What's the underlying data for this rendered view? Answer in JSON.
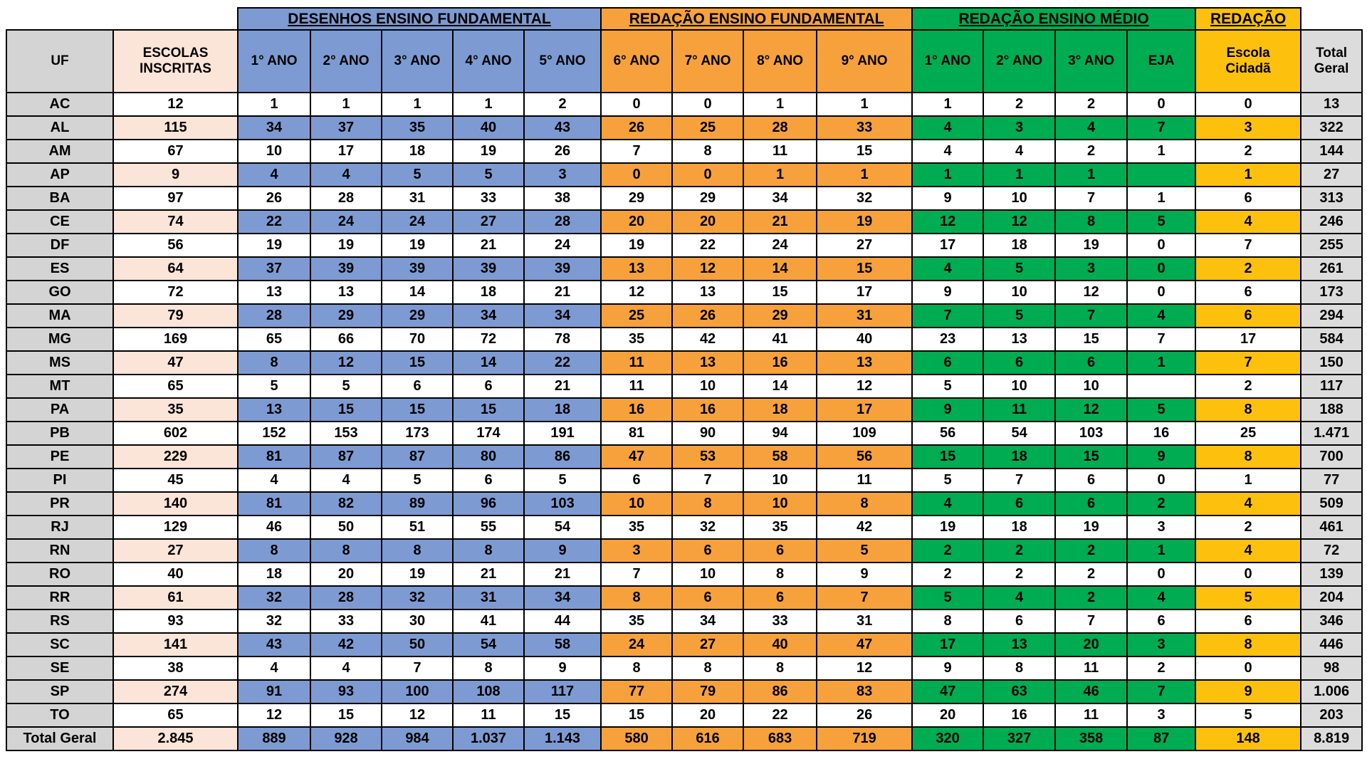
{
  "colors": {
    "blue": "#7D9BD2",
    "orange": "#F6A13B",
    "green": "#00AC51",
    "yellow": "#FDC00D",
    "gray": "#D4D4D4",
    "totalgray": "#DCDCDC",
    "peach": "#FBE5D8",
    "border": "#000000"
  },
  "table": {
    "group_headers": [
      {
        "label": "DESENHOS ENSINO FUNDAMENTAL",
        "span": 5
      },
      {
        "label": "REDAÇÃO ENSINO FUNDAMENTAL",
        "span": 4
      },
      {
        "label": "REDAÇÃO ENSINO MÉDIO",
        "span": 4
      },
      {
        "label": "REDAÇÃO",
        "span": 1
      }
    ],
    "columns": [
      "UF",
      "ESCOLAS\nINSCRITAS",
      "1° ANO",
      "2° ANO",
      "3° ANO",
      "4° ANO",
      "5° ANO",
      "6° ANO",
      "7° ANO",
      "8° ANO",
      "9° ANO",
      "1° ANO",
      "2° ANO",
      "3° ANO",
      "EJA",
      "Escola\nCidadã",
      "Total\nGeral"
    ],
    "rows": [
      {
        "uf": "AC",
        "cells": [
          "12",
          "1",
          "1",
          "1",
          "1",
          "2",
          "0",
          "0",
          "1",
          "1",
          "1",
          "2",
          "2",
          "0",
          "0",
          "13"
        ]
      },
      {
        "uf": "AL",
        "cells": [
          "115",
          "34",
          "37",
          "35",
          "40",
          "43",
          "26",
          "25",
          "28",
          "33",
          "4",
          "3",
          "4",
          "7",
          "3",
          "322"
        ]
      },
      {
        "uf": "AM",
        "cells": [
          "67",
          "10",
          "17",
          "18",
          "19",
          "26",
          "7",
          "8",
          "11",
          "15",
          "4",
          "4",
          "2",
          "1",
          "2",
          "144"
        ]
      },
      {
        "uf": "AP",
        "cells": [
          "9",
          "4",
          "4",
          "5",
          "5",
          "3",
          "0",
          "0",
          "1",
          "1",
          "1",
          "1",
          "1",
          "",
          "1",
          "27"
        ]
      },
      {
        "uf": "BA",
        "cells": [
          "97",
          "26",
          "28",
          "31",
          "33",
          "38",
          "29",
          "29",
          "34",
          "32",
          "9",
          "10",
          "7",
          "1",
          "6",
          "313"
        ]
      },
      {
        "uf": "CE",
        "cells": [
          "74",
          "22",
          "24",
          "24",
          "27",
          "28",
          "20",
          "20",
          "21",
          "19",
          "12",
          "12",
          "8",
          "5",
          "4",
          "246"
        ]
      },
      {
        "uf": "DF",
        "cells": [
          "56",
          "19",
          "19",
          "19",
          "21",
          "24",
          "19",
          "22",
          "24",
          "27",
          "17",
          "18",
          "19",
          "0",
          "7",
          "255"
        ]
      },
      {
        "uf": "ES",
        "cells": [
          "64",
          "37",
          "39",
          "39",
          "39",
          "39",
          "13",
          "12",
          "14",
          "15",
          "4",
          "5",
          "3",
          "0",
          "2",
          "261"
        ]
      },
      {
        "uf": "GO",
        "cells": [
          "72",
          "13",
          "13",
          "14",
          "18",
          "21",
          "12",
          "13",
          "15",
          "17",
          "9",
          "10",
          "12",
          "0",
          "6",
          "173"
        ]
      },
      {
        "uf": "MA",
        "cells": [
          "79",
          "28",
          "29",
          "29",
          "34",
          "34",
          "25",
          "26",
          "29",
          "31",
          "7",
          "5",
          "7",
          "4",
          "6",
          "294"
        ]
      },
      {
        "uf": "MG",
        "cells": [
          "169",
          "65",
          "66",
          "70",
          "72",
          "78",
          "35",
          "42",
          "41",
          "40",
          "23",
          "13",
          "15",
          "7",
          "17",
          "584"
        ]
      },
      {
        "uf": "MS",
        "cells": [
          "47",
          "8",
          "12",
          "15",
          "14",
          "22",
          "11",
          "13",
          "16",
          "13",
          "6",
          "6",
          "6",
          "1",
          "7",
          "150"
        ]
      },
      {
        "uf": "MT",
        "cells": [
          "65",
          "5",
          "5",
          "6",
          "6",
          "21",
          "11",
          "10",
          "14",
          "12",
          "5",
          "10",
          "10",
          "",
          "2",
          "117"
        ]
      },
      {
        "uf": "PA",
        "cells": [
          "35",
          "13",
          "15",
          "15",
          "15",
          "18",
          "16",
          "16",
          "18",
          "17",
          "9",
          "11",
          "12",
          "5",
          "8",
          "188"
        ]
      },
      {
        "uf": "PB",
        "cells": [
          "602",
          "152",
          "153",
          "173",
          "174",
          "191",
          "81",
          "90",
          "94",
          "109",
          "56",
          "54",
          "103",
          "16",
          "25",
          "1.471"
        ]
      },
      {
        "uf": "PE",
        "cells": [
          "229",
          "81",
          "87",
          "87",
          "80",
          "86",
          "47",
          "53",
          "58",
          "56",
          "15",
          "18",
          "15",
          "9",
          "8",
          "700"
        ]
      },
      {
        "uf": "PI",
        "cells": [
          "45",
          "4",
          "4",
          "5",
          "6",
          "5",
          "6",
          "7",
          "10",
          "11",
          "5",
          "7",
          "6",
          "0",
          "1",
          "77"
        ]
      },
      {
        "uf": "PR",
        "cells": [
          "140",
          "81",
          "82",
          "89",
          "96",
          "103",
          "10",
          "8",
          "10",
          "8",
          "4",
          "6",
          "6",
          "2",
          "4",
          "509"
        ]
      },
      {
        "uf": "RJ",
        "cells": [
          "129",
          "46",
          "50",
          "51",
          "55",
          "54",
          "35",
          "32",
          "35",
          "42",
          "19",
          "18",
          "19",
          "3",
          "2",
          "461"
        ]
      },
      {
        "uf": "RN",
        "cells": [
          "27",
          "8",
          "8",
          "8",
          "8",
          "9",
          "3",
          "6",
          "6",
          "5",
          "2",
          "2",
          "2",
          "1",
          "4",
          "72"
        ]
      },
      {
        "uf": "RO",
        "cells": [
          "40",
          "18",
          "20",
          "19",
          "21",
          "21",
          "7",
          "10",
          "8",
          "9",
          "2",
          "2",
          "2",
          "0",
          "0",
          "139"
        ]
      },
      {
        "uf": "RR",
        "cells": [
          "61",
          "32",
          "28",
          "32",
          "31",
          "34",
          "8",
          "6",
          "6",
          "7",
          "5",
          "4",
          "2",
          "4",
          "5",
          "204"
        ]
      },
      {
        "uf": "RS",
        "cells": [
          "93",
          "32",
          "33",
          "30",
          "41",
          "44",
          "35",
          "34",
          "33",
          "31",
          "8",
          "6",
          "7",
          "6",
          "6",
          "346"
        ]
      },
      {
        "uf": "SC",
        "cells": [
          "141",
          "43",
          "42",
          "50",
          "54",
          "58",
          "24",
          "27",
          "40",
          "47",
          "17",
          "13",
          "20",
          "3",
          "8",
          "446"
        ]
      },
      {
        "uf": "SE",
        "cells": [
          "38",
          "4",
          "4",
          "7",
          "8",
          "9",
          "8",
          "8",
          "8",
          "12",
          "9",
          "8",
          "11",
          "2",
          "0",
          "98"
        ]
      },
      {
        "uf": "SP",
        "cells": [
          "274",
          "91",
          "93",
          "100",
          "108",
          "117",
          "77",
          "79",
          "86",
          "83",
          "47",
          "63",
          "46",
          "7",
          "9",
          "1.006"
        ]
      },
      {
        "uf": "TO",
        "cells": [
          "65",
          "12",
          "15",
          "12",
          "11",
          "15",
          "15",
          "20",
          "22",
          "26",
          "20",
          "16",
          "11",
          "3",
          "5",
          "203"
        ]
      }
    ],
    "total_row": {
      "uf": "Total Geral",
      "cells": [
        "2.845",
        "889",
        "928",
        "984",
        "1.037",
        "1.143",
        "580",
        "616",
        "683",
        "719",
        "320",
        "327",
        "358",
        "87",
        "148",
        "8.819"
      ]
    }
  }
}
